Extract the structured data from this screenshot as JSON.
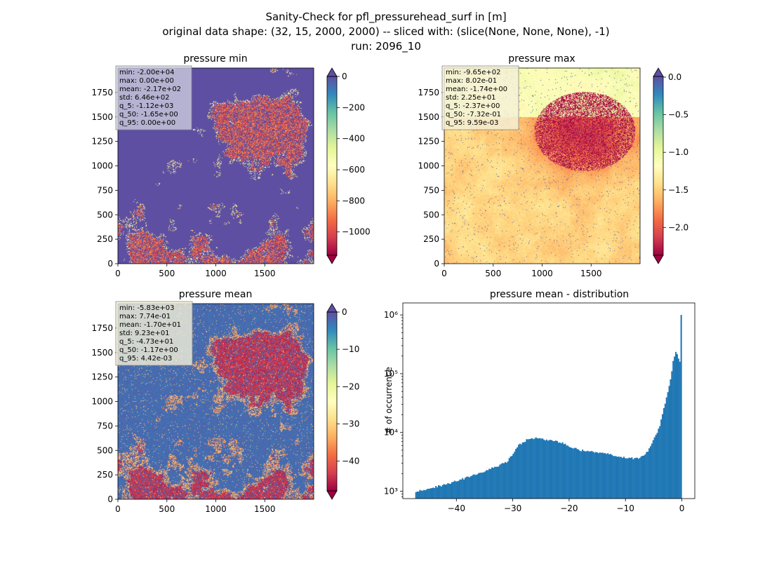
{
  "figure": {
    "suptitle_lines": [
      "Sanity-Check for pfl_pressurehead_surf in [m]",
      "original data shape: (32, 15, 2000, 2000) -- sliced with: (slice(None, None, None), -1)",
      "run: 2096_10"
    ]
  },
  "colormap": {
    "name": "Spectral",
    "stops": [
      "#9e0142",
      "#d53e4f",
      "#f46d43",
      "#fdae61",
      "#fee08b",
      "#ffffbf",
      "#e6f598",
      "#abdda4",
      "#66c2a5",
      "#3288bd",
      "#5e4fa2"
    ]
  },
  "chart_data": [
    {
      "type": "heatmap",
      "title": "pressure min",
      "xlim": [
        0,
        2000
      ],
      "ylim": [
        0,
        2000
      ],
      "xticks": [
        0,
        500,
        1000,
        1500
      ],
      "yticks": [
        0,
        250,
        500,
        750,
        1000,
        1250,
        1500,
        1750
      ],
      "colorbar": {
        "vmin": -1150,
        "vmax": 0,
        "ticks": [
          0,
          -200,
          -400,
          -600,
          -800,
          -1000
        ],
        "tick_labels": [
          "0",
          "−200",
          "−400",
          "−600",
          "−800",
          "−1000"
        ],
        "extend": "both"
      },
      "background_value": 0,
      "stats": [
        "min: -2.00e+04",
        "max: 0.00e+00",
        "mean: -2.17e+02",
        "std: 6.46e+02",
        "q_5: -1.12e+03",
        "q_50: -1.65e+00",
        "q_95: 0.00e+00"
      ]
    },
    {
      "type": "heatmap",
      "title": "pressure max",
      "xlim": [
        0,
        2000
      ],
      "ylim": [
        0,
        2000
      ],
      "xticks": [
        0,
        500,
        1000,
        1500
      ],
      "yticks": [
        0,
        250,
        500,
        750,
        1000,
        1250,
        1500,
        1750
      ],
      "colorbar": {
        "vmin": -2.37,
        "vmax": 0.0096,
        "ticks": [
          0.0,
          -0.5,
          -1.0,
          -1.5,
          -2.0
        ],
        "tick_labels": [
          "0.0",
          "−0.5",
          "−1.0",
          "−1.5",
          "−2.0"
        ],
        "extend": "both"
      },
      "background_value": -0.7,
      "stats": [
        "min: -9.65e+02",
        "max: 8.02e-01",
        "mean: -1.74e+00",
        "std: 2.25e+01",
        "q_5: -2.37e+00",
        "q_50: -7.32e-01",
        "q_95: 9.59e-03"
      ]
    },
    {
      "type": "heatmap",
      "title": "pressure mean",
      "xlim": [
        0,
        2000
      ],
      "ylim": [
        0,
        2000
      ],
      "xticks": [
        0,
        500,
        1000,
        1500
      ],
      "yticks": [
        0,
        250,
        500,
        750,
        1000,
        1250,
        1500,
        1750
      ],
      "colorbar": {
        "vmin": -48,
        "vmax": 0,
        "ticks": [
          0,
          -10,
          -20,
          -30,
          -40
        ],
        "tick_labels": [
          "0",
          "−10",
          "−20",
          "−30",
          "−40"
        ],
        "extend": "both"
      },
      "background_value": -1,
      "stats": [
        "min: -5.83e+03",
        "max: 7.74e-01",
        "mean: -1.70e+01",
        "std: 9.23e+01",
        "q_5: -4.73e+01",
        "q_50: -1.17e+00",
        "q_95: 4.42e-03"
      ]
    },
    {
      "type": "bar",
      "title": "pressure mean - distribution",
      "ylabel": "# of occurrence",
      "xlabel": "",
      "y_scale": "log",
      "xlim": [
        -49.5,
        2.3
      ],
      "ylim": [
        750,
        1600000
      ],
      "xticks": [
        -40,
        -30,
        -20,
        -10,
        0
      ],
      "xtick_labels": [
        "−40",
        "−30",
        "−20",
        "−10",
        "0"
      ],
      "yticks": [
        1000,
        10000,
        100000,
        1000000
      ],
      "ytick_labels": [
        "10³",
        "10⁴",
        "10⁵",
        "10⁶"
      ],
      "color": "#1f77b4",
      "bin_range": [
        -47.3,
        0
      ],
      "shape_points": [
        [
          -47.3,
          1000
        ],
        [
          -45,
          1100
        ],
        [
          -42,
          1300
        ],
        [
          -39,
          1600
        ],
        [
          -36,
          2000
        ],
        [
          -33,
          2600
        ],
        [
          -31,
          3200
        ],
        [
          -30,
          4200
        ],
        [
          -29,
          6000
        ],
        [
          -27.5,
          7500
        ],
        [
          -26,
          8000
        ],
        [
          -24,
          7500
        ],
        [
          -22,
          7000
        ],
        [
          -21,
          6500
        ],
        [
          -20,
          5800
        ],
        [
          -18,
          5000
        ],
        [
          -15,
          4600
        ],
        [
          -12,
          4100
        ],
        [
          -10,
          3700
        ],
        [
          -8,
          3600
        ],
        [
          -7,
          3900
        ],
        [
          -6,
          4800
        ],
        [
          -5,
          7500
        ],
        [
          -4,
          12000
        ],
        [
          -3,
          30000
        ],
        [
          -2,
          80000
        ],
        [
          -1.5,
          170000
        ],
        [
          -1,
          250000
        ],
        [
          -0.6,
          180000
        ],
        [
          -0.3,
          120000
        ],
        [
          -0.1,
          1000000
        ],
        [
          0,
          15000
        ]
      ]
    }
  ]
}
